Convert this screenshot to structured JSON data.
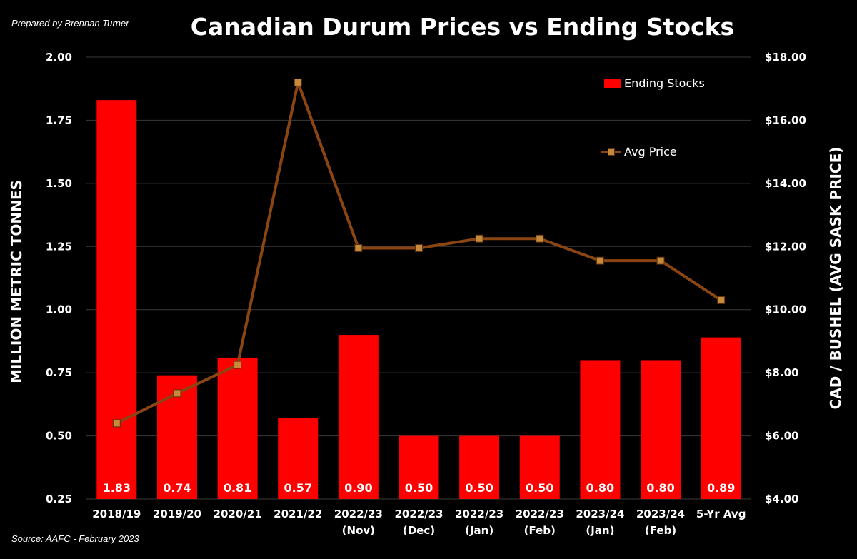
{
  "header": {
    "prepared_by": "Prepared by Brennan Turner",
    "source": "Source: AAFC -  February 2023"
  },
  "colors": {
    "background": "#000000",
    "bar": "#ff0000",
    "line": "#8B4513",
    "marker": "#c58a3a"
  },
  "chart_data": {
    "type": "bar",
    "title": "Canadian Durum Prices vs Ending Stocks",
    "categories": [
      [
        "2018/19"
      ],
      [
        "2019/20"
      ],
      [
        "2020/21"
      ],
      [
        "2021/22"
      ],
      [
        "2022/23",
        "(Nov)"
      ],
      [
        "2022/23",
        "(Dec)"
      ],
      [
        "2022/23",
        "(Jan)"
      ],
      [
        "2022/23",
        "(Feb)"
      ],
      [
        "2023/24",
        "(Jan)"
      ],
      [
        "2023/24",
        "(Feb)"
      ],
      [
        "5-Yr Avg"
      ]
    ],
    "series": [
      {
        "name": "Ending Stocks",
        "type": "bar",
        "axis": "left",
        "values": [
          1.83,
          0.74,
          0.81,
          0.57,
          0.9,
          0.5,
          0.5,
          0.5,
          0.8,
          0.8,
          0.89
        ],
        "labels": [
          "1.83",
          "0.74",
          "0.81",
          "0.57",
          "0.90",
          "0.50",
          "0.50",
          "0.50",
          "0.80",
          "0.80",
          "0.89"
        ]
      },
      {
        "name": "Avg Price",
        "type": "line",
        "axis": "right",
        "values": [
          6.4,
          7.35,
          8.25,
          17.2,
          11.95,
          11.95,
          12.25,
          12.25,
          11.55,
          11.55,
          10.3
        ]
      }
    ],
    "ylabel": "MILLION METRIC TONNES",
    "ylim": [
      0.25,
      2.0
    ],
    "yticks": [
      "0.25",
      "0.50",
      "0.75",
      "1.00",
      "1.25",
      "1.50",
      "1.75",
      "2.00"
    ],
    "y2label": "CAD / BUSHEL (AVG SASK PRICE)",
    "y2lim": [
      4.0,
      18.0
    ],
    "y2ticks": [
      "$4.00",
      "$6.00",
      "$8.00",
      "$10.00",
      "$12.00",
      "$14.00",
      "$16.00",
      "$18.00"
    ],
    "grid": true,
    "legend": "top-right"
  }
}
